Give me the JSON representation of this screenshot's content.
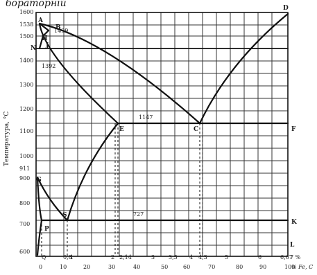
{
  "header_fragment": "бораторнiй",
  "y_axis_label": "Температура, °С",
  "x_axis_unit": "% Fe, C",
  "temperature_ticks": [
    "1600",
    "1538",
    "1500",
    "1400",
    "1300",
    "1200",
    "1100",
    "1000",
    "911",
    "900",
    "800",
    "700",
    "600"
  ],
  "temperature_inline_labels": [
    "1499",
    "1392",
    "1147",
    "727"
  ],
  "carbon_ticks": [
    "Q",
    "0,8",
    "1",
    "2",
    "2,14",
    "3",
    "3,5",
    "4",
    "4,3",
    "5",
    "6",
    "6,67",
    "7 %"
  ],
  "fe_ticks": [
    "0",
    "10",
    "20",
    "30",
    "40",
    "50",
    "60",
    "70",
    "80",
    "90",
    "100"
  ],
  "points": [
    "A",
    "B",
    "D",
    "E",
    "C",
    "F",
    "G",
    "S",
    "P",
    "K",
    "L",
    "N",
    "H",
    "J"
  ],
  "line_color": "#1a1a1a",
  "grid_color": "#333333",
  "background": "#ffffff"
}
